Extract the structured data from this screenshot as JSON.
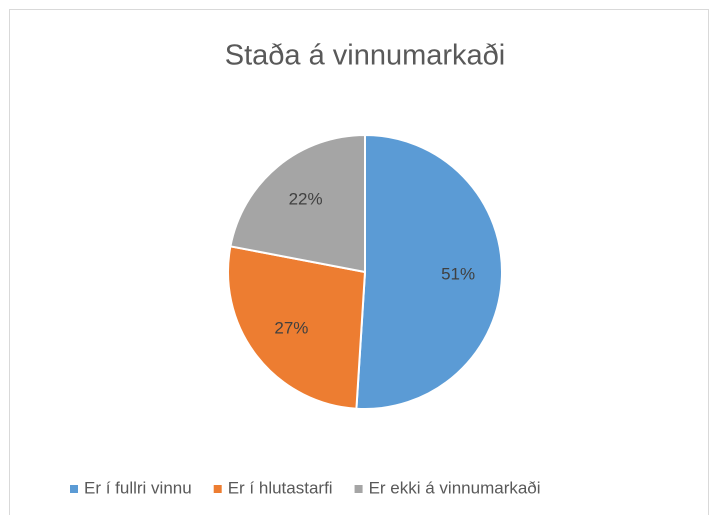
{
  "chart_data": {
    "type": "pie",
    "title": "Staða á vinnumarkaði",
    "categories": [
      "Er í fullri vinnu",
      "Er í hlutastarfi",
      "Er ekki á vinnumarkaði"
    ],
    "values": [
      51,
      27,
      22
    ],
    "value_labels": [
      "51%",
      "27%",
      "22%"
    ],
    "colors": [
      "#5b9bd5",
      "#ed7d31",
      "#a5a5a5"
    ],
    "legend": "bottom"
  }
}
